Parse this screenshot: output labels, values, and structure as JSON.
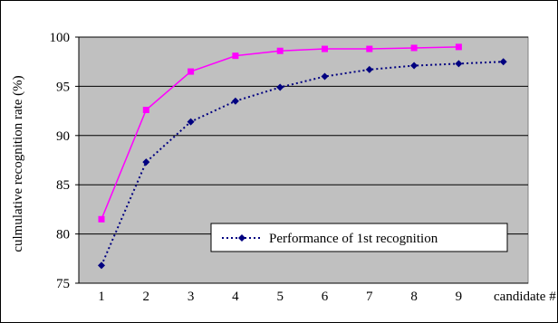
{
  "chart_data": {
    "type": "line",
    "xlabel": "candidate #",
    "ylabel": "culmulative recognition rate (%)",
    "x_ticks": [
      "1",
      "2",
      "3",
      "4",
      "5",
      "6",
      "7",
      "8",
      "9"
    ],
    "ylim": [
      75,
      100
    ],
    "y_ticks": [
      "75",
      "80",
      "85",
      "90",
      "95",
      "100"
    ],
    "grid": "horizontal",
    "plot_background": "#c0c0c0",
    "legend": {
      "placement": "bottom-right",
      "entries": [
        "Performance of 1st recognition"
      ]
    },
    "series": [
      {
        "name": "Performance of 1st recognition",
        "color": "#000080",
        "line_style": "dotted",
        "marker": "diamond",
        "x": [
          1,
          2,
          3,
          4,
          5,
          6,
          7,
          8,
          9,
          10
        ],
        "y": [
          76.8,
          87.3,
          91.4,
          93.5,
          94.9,
          96.0,
          96.7,
          97.1,
          97.3,
          97.5
        ]
      },
      {
        "color": "#ff00ff",
        "line_style": "solid",
        "marker": "square",
        "x": [
          1,
          2,
          3,
          4,
          5,
          6,
          7,
          8,
          9
        ],
        "y": [
          81.5,
          92.6,
          96.5,
          98.1,
          98.6,
          98.8,
          98.8,
          98.9,
          99.0
        ]
      }
    ]
  }
}
